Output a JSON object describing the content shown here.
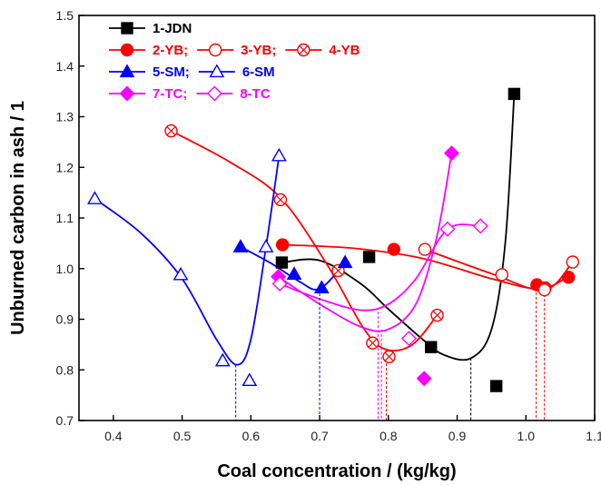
{
  "chart_data": {
    "type": "scatter",
    "xlabel": "Coal concentration / (kg/kg)",
    "ylabel": "Unburned carbon in ash / 1",
    "xlim": [
      0.35,
      1.1
    ],
    "ylim": [
      0.7,
      1.5
    ],
    "xticks": [
      0.4,
      0.5,
      0.6,
      0.7,
      0.8,
      0.9,
      1.0,
      1.1
    ],
    "yticks": [
      0.7,
      0.8,
      0.9,
      1.0,
      1.1,
      1.2,
      1.3,
      1.4,
      1.5
    ],
    "xtick_labels": [
      "0.4",
      "0.5",
      "0.6",
      "0.7",
      "0.8",
      "0.9",
      "1.0",
      "1.1"
    ],
    "ytick_labels": [
      "0.7",
      "0.8",
      "0.9",
      "1.0",
      "1.1",
      "1.2",
      "1.3",
      "1.4",
      "1.5"
    ],
    "legend_position": "top-left",
    "legend": [
      {
        "text": "1-JDN",
        "series": [
          "1-JDN"
        ],
        "color": "#000000"
      },
      {
        "text": "2-YB; ",
        "series": [
          "2-YB"
        ],
        "color": "#ff0000"
      },
      {
        "text": "3-YB; ",
        "series": [
          "3-YB"
        ],
        "color": "#ff0000"
      },
      {
        "text": "4-YB",
        "series": [
          "4-YB"
        ],
        "color": "#ff0000"
      },
      {
        "text": "5-SM;",
        "series": [
          "5-SM"
        ],
        "color": "#0000ff"
      },
      {
        "text": "6-SM",
        "series": [
          "6-SM"
        ],
        "color": "#0000ff"
      },
      {
        "text": "7-TC;",
        "series": [
          "7-TC"
        ],
        "color": "#ff00ff"
      },
      {
        "text": "8-TC",
        "series": [
          "8-TC"
        ],
        "color": "#ff00ff"
      }
    ],
    "series": [
      {
        "name": "1-JDN",
        "color": "#000000",
        "marker": "square",
        "filled": true,
        "x": [
          0.645,
          0.772,
          0.862,
          0.957,
          0.983
        ],
        "y": [
          1.012,
          1.023,
          0.845,
          0.768,
          1.345
        ]
      },
      {
        "name": "2-YB",
        "color": "#ff0000",
        "marker": "circle",
        "filled": true,
        "x": [
          0.646,
          0.808,
          1.016,
          1.028,
          1.062
        ],
        "y": [
          1.047,
          1.038,
          0.968,
          0.962,
          0.983
        ]
      },
      {
        "name": "3-YB",
        "color": "#ff0000",
        "marker": "circle",
        "filled": false,
        "x": [
          0.853,
          0.965,
          1.027,
          1.068
        ],
        "y": [
          1.038,
          0.988,
          0.958,
          1.013
        ]
      },
      {
        "name": "4-YB",
        "color": "#ff0000",
        "marker": "circle-x",
        "filled": false,
        "x": [
          0.484,
          0.643,
          0.727,
          0.777,
          0.801,
          0.871
        ],
        "y": [
          1.272,
          1.136,
          0.996,
          0.853,
          0.826,
          0.908
        ]
      },
      {
        "name": "5-SM",
        "color": "#0000ff",
        "marker": "triangle",
        "filled": true,
        "x": [
          0.585,
          0.663,
          0.703,
          0.737
        ],
        "y": [
          1.043,
          0.989,
          0.962,
          1.012
        ]
      },
      {
        "name": "6-SM",
        "color": "#0000ff",
        "marker": "triangle",
        "filled": false,
        "x": [
          0.373,
          0.498,
          0.559,
          0.598,
          0.622,
          0.641
        ],
        "y": [
          1.138,
          0.988,
          0.818,
          0.779,
          1.043,
          1.223
        ]
      },
      {
        "name": "7-TC",
        "color": "#ff00ff",
        "marker": "diamond",
        "filled": true,
        "x": [
          0.64,
          0.852,
          0.892
        ],
        "y": [
          0.984,
          0.783,
          1.228
        ]
      },
      {
        "name": "8-TC",
        "color": "#ff00ff",
        "marker": "diamond",
        "filled": false,
        "x": [
          0.642,
          0.83,
          0.886,
          0.934
        ],
        "y": [
          0.97,
          0.862,
          1.078,
          1.084
        ]
      }
    ],
    "fitted_curves": [
      {
        "color": "#000000",
        "x": [
          0.645,
          0.7,
          0.76,
          0.8,
          0.85,
          0.88,
          0.92,
          0.95,
          0.97,
          0.983
        ],
        "y": [
          1.012,
          1.016,
          0.97,
          0.92,
          0.86,
          0.83,
          0.823,
          0.88,
          1.05,
          1.345
        ]
      },
      {
        "color": "#ff0000",
        "x": [
          0.646,
          0.75,
          0.85,
          0.95,
          1.02,
          1.06
        ],
        "y": [
          1.047,
          1.04,
          1.02,
          0.98,
          0.96,
          0.983
        ]
      },
      {
        "color": "#ff0000",
        "x": [
          0.853,
          0.95,
          1.027,
          1.068
        ],
        "y": [
          1.038,
          0.99,
          0.958,
          1.013
        ]
      },
      {
        "color": "#ff0000",
        "x": [
          0.484,
          0.57,
          0.643,
          0.71,
          0.765,
          0.797,
          0.835,
          0.871
        ],
        "y": [
          1.272,
          1.21,
          1.14,
          1.01,
          0.88,
          0.84,
          0.85,
          0.908
        ]
      },
      {
        "color": "#0000ff",
        "x": [
          0.585,
          0.63,
          0.67,
          0.7,
          0.737
        ],
        "y": [
          1.043,
          1.01,
          0.975,
          0.96,
          1.012
        ]
      },
      {
        "color": "#0000ff",
        "x": [
          0.373,
          0.44,
          0.5,
          0.55,
          0.58,
          0.6,
          0.622,
          0.641
        ],
        "y": [
          1.138,
          1.07,
          0.98,
          0.86,
          0.81,
          0.86,
          1.043,
          1.223
        ]
      },
      {
        "color": "#ff00ff",
        "x": [
          0.64,
          0.7,
          0.76,
          0.8,
          0.84,
          0.87,
          0.892
        ],
        "y": [
          0.984,
          0.93,
          0.885,
          0.88,
          0.93,
          1.06,
          1.228
        ]
      },
      {
        "color": "#ff00ff",
        "x": [
          0.642,
          0.7,
          0.76,
          0.8,
          0.84,
          0.886,
          0.934
        ],
        "y": [
          0.97,
          0.94,
          0.918,
          0.93,
          0.98,
          1.078,
          1.084
        ]
      }
    ],
    "minimum_markers": [
      {
        "x": 0.578,
        "y": 0.81,
        "color": "#0000ff"
      },
      {
        "x": 0.7,
        "y": 0.96,
        "color": "#0000ff"
      },
      {
        "x": 0.785,
        "y": 0.915,
        "color": "#ff00ff"
      },
      {
        "x": 0.79,
        "y": 0.88,
        "color": "#ff00ff"
      },
      {
        "x": 0.797,
        "y": 0.84,
        "color": "#ff0000"
      },
      {
        "x": 0.92,
        "y": 0.823,
        "color": "#000000"
      },
      {
        "x": 1.015,
        "y": 0.962,
        "color": "#ff0000"
      },
      {
        "x": 1.027,
        "y": 0.958,
        "color": "#ff0000"
      }
    ]
  }
}
